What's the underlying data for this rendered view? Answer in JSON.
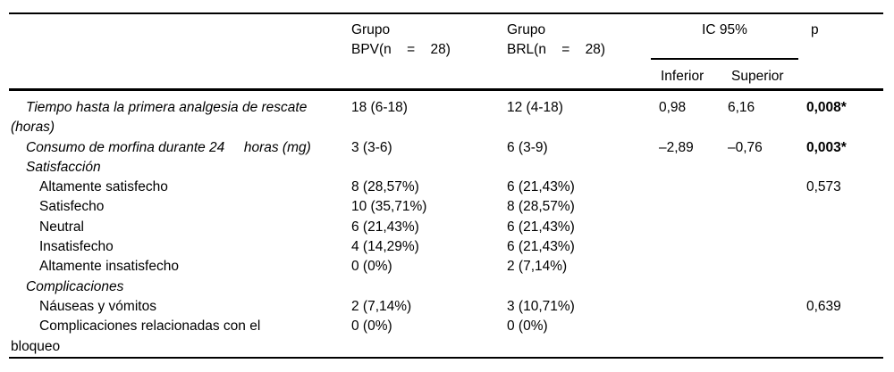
{
  "page": {
    "background": "#ffffff",
    "text_color": "#000000",
    "rule_color": "#000000"
  },
  "table": {
    "header": {
      "group_bpv": {
        "line1": "Grupo",
        "line2": "BPV(n = 28)"
      },
      "group_brl": {
        "line1": "Grupo",
        "line2": "BRL(n = 28)"
      },
      "ic_label": "IC 95%",
      "inferior": "Inferior",
      "superior": "Superior",
      "p": "p"
    },
    "rows": [
      {
        "label": "Tiempo hasta la primera analgesia de rescate\n(horas)",
        "style": "main",
        "bpv": "18 (6-18)",
        "brl": "12 (4-18)",
        "inferior": "0,98",
        "superior": "6,16",
        "p": "0,008*",
        "p_bold": true
      },
      {
        "label": "Consumo de morfina durante 24     horas (mg)",
        "style": "main",
        "bpv": "3 (3-6)",
        "brl": "6 (3-9)",
        "inferior": "–2,89",
        "superior": "–0,76",
        "p": "0,003*",
        "p_bold": true
      },
      {
        "label": "Satisfacción",
        "style": "section"
      },
      {
        "label": "Altamente satisfecho",
        "style": "sub",
        "bpv": "8 (28,57%)",
        "brl": "6 (21,43%)",
        "p": "0,573"
      },
      {
        "label": "Satisfecho",
        "style": "sub",
        "bpv": "10 (35,71%)",
        "brl": "8 (28,57%)"
      },
      {
        "label": "Neutral",
        "style": "sub",
        "bpv": "6 (21,43%)",
        "brl": "6 (21,43%)"
      },
      {
        "label": "Insatisfecho",
        "style": "sub",
        "bpv": "4 (14,29%)",
        "brl": "6 (21,43%)"
      },
      {
        "label": "Altamente insatisfecho",
        "style": "sub",
        "bpv": "0 (0%)",
        "brl": "2 (7,14%)"
      },
      {
        "label": "Complicaciones",
        "style": "section"
      },
      {
        "label": "Náuseas y vómitos",
        "style": "sub",
        "bpv": "2 (7,14%)",
        "brl": "3 (10,71%)",
        "p": "0,639"
      },
      {
        "label": "Complicaciones relacionadas con el\nbloqueo",
        "style": "sub",
        "bpv": "0 (0%)",
        "brl": "0 (0%)"
      }
    ]
  }
}
